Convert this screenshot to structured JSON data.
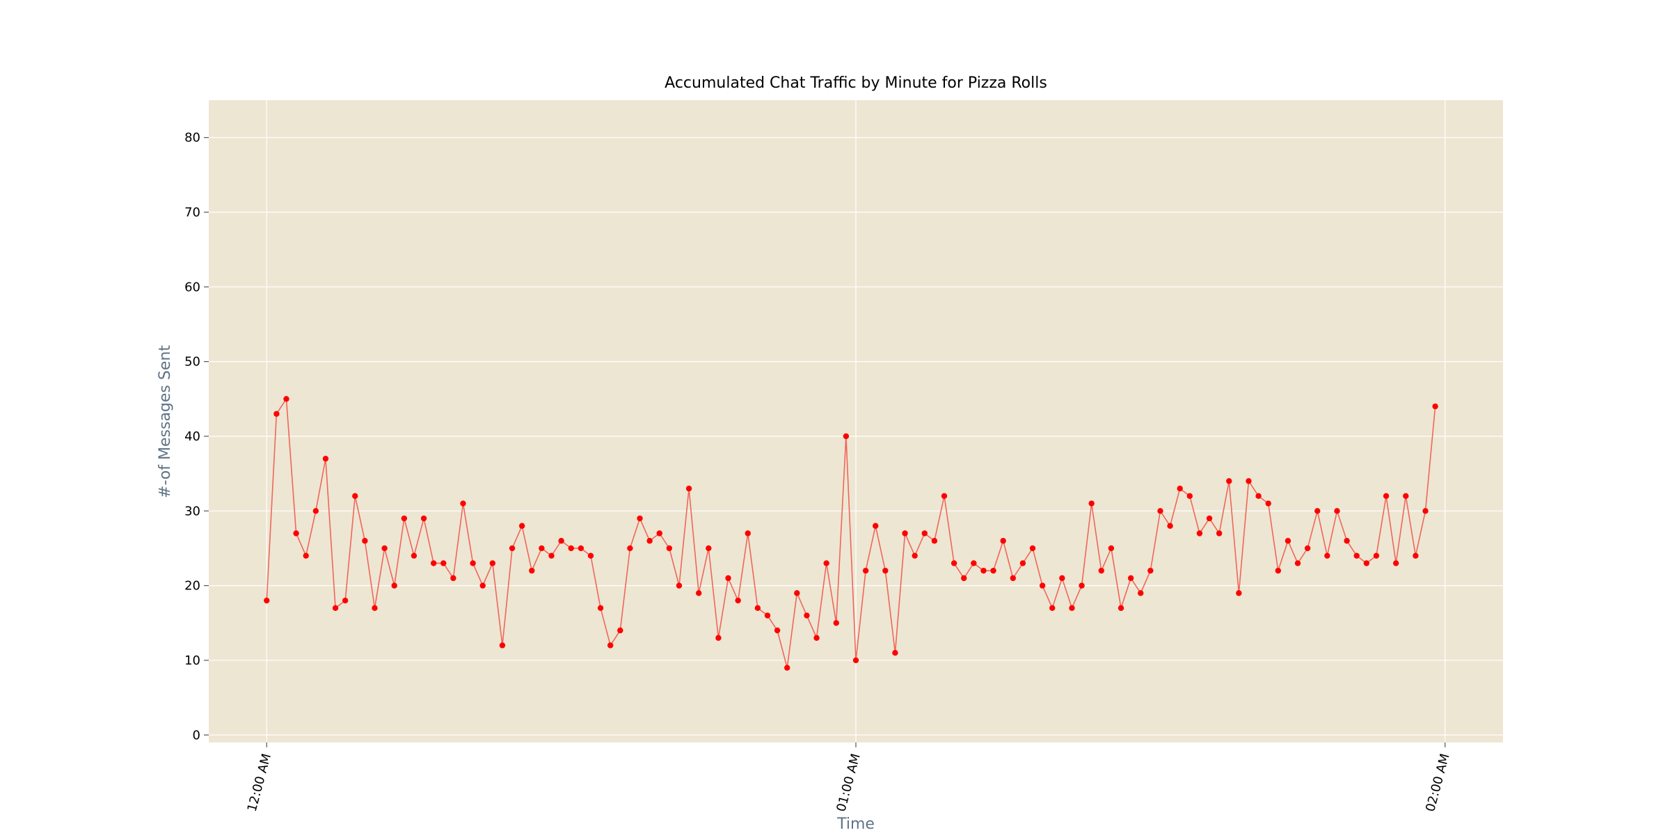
{
  "chart_data": {
    "type": "line",
    "title": "Accumulated Chat Traffic by Minute for Pizza Rolls",
    "xlabel": "Time",
    "ylabel": "#-of Messages Sent",
    "x_start": "12:00 AM",
    "x_step": "1 minute",
    "x_ticks": [
      "12:00 AM",
      "01:00 AM",
      "02:00 AM"
    ],
    "xlim": [
      "11:54 AM",
      "02:05 AM"
    ],
    "y_ticks": [
      0,
      10,
      20,
      30,
      40,
      50,
      60,
      70,
      80
    ],
    "ylim": [
      -1,
      85
    ],
    "grid": true,
    "legend": "none",
    "colors": {
      "plot_background": "#ede6d3",
      "grid": "#ffffff",
      "line": "#f0665a",
      "marker": "#ff0000"
    },
    "series": [
      {
        "values": [
          18,
          43,
          45,
          27,
          24,
          30,
          37,
          17,
          18,
          32,
          26,
          17,
          25,
          20,
          29,
          24,
          29,
          23,
          23,
          21,
          31,
          23,
          20,
          23,
          12,
          25,
          28,
          22,
          25,
          24,
          26,
          25,
          25,
          24,
          17,
          12,
          14,
          25,
          29,
          26,
          27,
          25,
          20,
          33,
          19,
          25,
          13,
          21,
          18,
          27,
          17,
          16,
          14,
          9,
          19,
          16,
          13,
          23,
          15,
          40,
          10,
          22,
          28,
          22,
          11,
          27,
          24,
          27,
          26,
          32,
          23,
          21,
          23,
          22,
          22,
          26,
          21,
          23,
          25,
          20,
          17,
          21,
          17,
          20,
          31,
          22,
          25,
          17,
          21,
          19,
          22,
          30,
          28,
          33,
          32,
          27,
          29,
          27,
          34,
          19,
          34,
          32,
          31,
          22,
          26,
          23,
          25,
          30,
          24,
          30,
          26,
          24,
          23,
          24,
          32,
          23,
          32,
          24,
          30,
          44
        ]
      }
    ]
  }
}
